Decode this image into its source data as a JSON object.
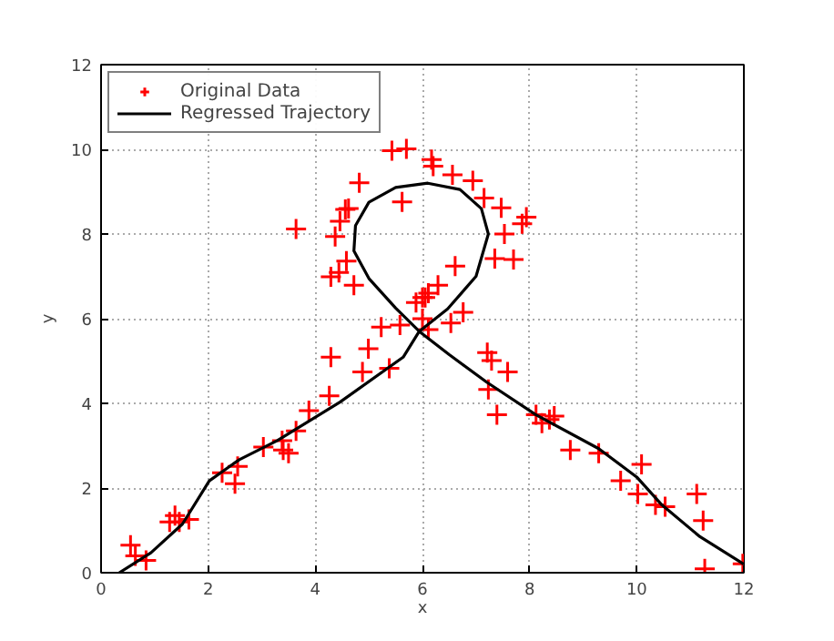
{
  "chart_data": {
    "type": "scatter",
    "xlabel": "x",
    "ylabel": "y",
    "xlim": [
      0,
      12
    ],
    "ylim": [
      0,
      12
    ],
    "xticks": [
      0,
      2,
      4,
      6,
      8,
      10,
      12
    ],
    "yticks": [
      0,
      2,
      4,
      6,
      8,
      10,
      12
    ],
    "grid": true,
    "legend": "top left",
    "series": [
      {
        "name": "Original Data",
        "marker": "cross",
        "color": "#ff0000",
        "x": [
          0.55,
          0.64,
          0.84,
          1.28,
          1.38,
          1.46,
          1.64,
          2.26,
          2.55,
          2.5,
          3.03,
          3.38,
          3.4,
          3.5,
          3.64,
          3.88,
          4.26,
          4.29,
          4.99,
          4.88,
          5.38,
          5.58,
          5.23,
          3.64,
          4.37,
          4.46,
          4.56,
          4.62,
          4.82,
          4.29,
          4.44,
          4.58,
          4.72,
          5.43,
          5.7,
          5.62,
          5.88,
          6.0,
          6.17,
          6.2,
          6.56,
          6.94,
          7.15,
          7.47,
          7.94,
          7.86,
          7.53,
          7.35,
          7.7,
          6.61,
          6.29,
          6.11,
          6.05,
          6.76,
          6.0,
          6.11,
          6.53,
          7.21,
          7.29,
          7.59,
          7.23,
          7.39,
          8.12,
          8.23,
          8.37,
          8.46,
          8.76,
          9.29,
          9.7,
          10.09,
          10.02,
          10.35,
          10.53,
          11.12,
          11.24,
          11.27,
          11.98
        ],
        "values": [
          0.65,
          0.4,
          0.29,
          1.2,
          1.35,
          1.2,
          1.26,
          2.36,
          2.51,
          2.1,
          2.97,
          3.12,
          2.9,
          2.82,
          3.35,
          3.83,
          4.18,
          5.09,
          5.29,
          4.74,
          4.83,
          5.85,
          5.8,
          8.12,
          7.94,
          8.3,
          8.58,
          8.6,
          9.21,
          6.99,
          7.09,
          7.36,
          6.79,
          9.97,
          10.01,
          8.76,
          6.38,
          6.5,
          9.76,
          9.6,
          9.4,
          9.26,
          8.85,
          8.62,
          8.4,
          8.24,
          8.0,
          7.42,
          7.4,
          7.24,
          6.79,
          6.6,
          6.5,
          6.15,
          6.0,
          5.74,
          5.9,
          5.2,
          5.01,
          4.74,
          4.33,
          3.73,
          3.73,
          3.53,
          3.62,
          3.7,
          2.9,
          2.82,
          2.17,
          2.56,
          1.86,
          1.6,
          1.56,
          1.86,
          1.23,
          0.09,
          0.21
        ]
      },
      {
        "name": "Regressed Trajectory",
        "type": "line",
        "line_style": "solid",
        "color": "#000000",
        "x": [
          0.34,
          0.93,
          1.52,
          2.02,
          2.58,
          3.29,
          4.46,
          5.64,
          5.94,
          6.47,
          7.0,
          7.23,
          7.1,
          6.7,
          6.1,
          5.5,
          5.0,
          4.75,
          4.72,
          5.0,
          5.5,
          5.94,
          6.5,
          7.2,
          8.12,
          9.29,
          10.0,
          10.47,
          11.18,
          12.0
        ],
        "values": [
          0.0,
          0.47,
          1.15,
          2.17,
          2.67,
          3.12,
          4.03,
          5.09,
          5.7,
          6.23,
          7.0,
          8.0,
          8.6,
          9.05,
          9.2,
          9.1,
          8.75,
          8.2,
          7.6,
          6.95,
          6.25,
          5.7,
          5.15,
          4.5,
          3.73,
          2.93,
          2.26,
          1.6,
          0.85,
          0.2
        ]
      }
    ]
  }
}
